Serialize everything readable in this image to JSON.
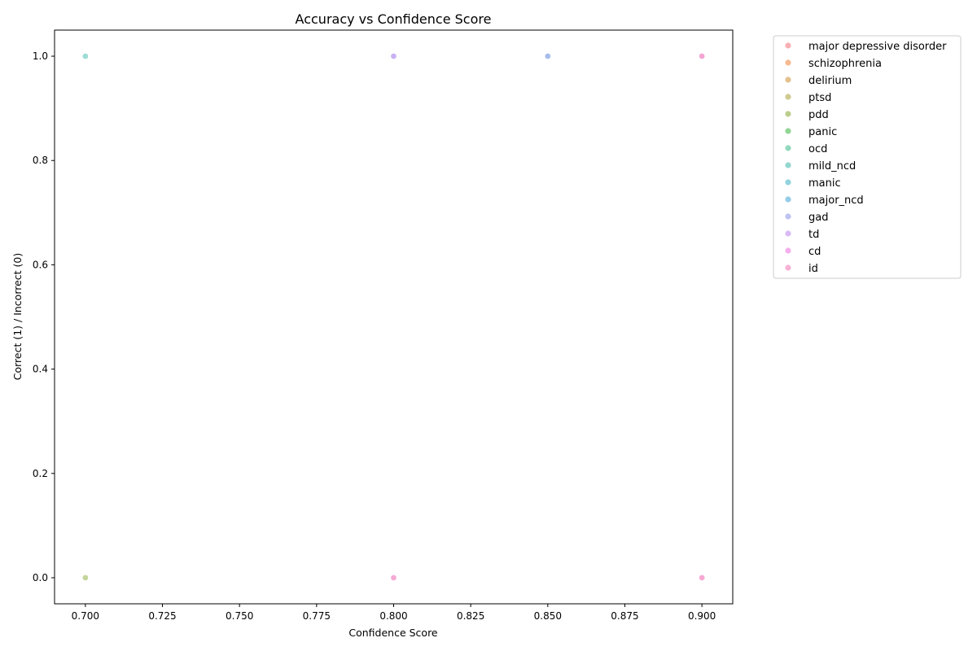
{
  "chart_data": {
    "type": "scatter",
    "title": "Accuracy vs Confidence Score",
    "xlabel": "Confidence Score",
    "ylabel": "Correct (1) / Incorrect (0)",
    "xlim": [
      0.69,
      0.91
    ],
    "ylim": [
      -0.05,
      1.05
    ],
    "x_ticks": [
      0.7,
      0.725,
      0.75,
      0.775,
      0.8,
      0.825,
      0.85,
      0.875,
      0.9
    ],
    "x_tick_labels": [
      "0.700",
      "0.725",
      "0.750",
      "0.775",
      "0.800",
      "0.825",
      "0.850",
      "0.875",
      "0.900"
    ],
    "y_ticks": [
      0,
      0.2,
      0.4,
      0.6,
      0.8,
      1.0
    ],
    "y_tick_labels": [
      "0.0",
      "0.2",
      "0.4",
      "0.6",
      "0.8",
      "1.0"
    ],
    "grid": false,
    "legend_position": "outside-top-right",
    "series": [
      {
        "name": "major depressive disorder",
        "color": "#f7a1a6",
        "points": [
          [
            0.9,
            1
          ],
          [
            0.8,
            1
          ]
        ]
      },
      {
        "name": "schizophrenia",
        "color": "#f5ad7c",
        "points": [
          [
            0.85,
            1
          ],
          [
            0.9,
            1
          ]
        ]
      },
      {
        "name": "delirium",
        "color": "#dfb679",
        "points": [
          [
            0.8,
            1
          ],
          [
            0.85,
            1
          ]
        ]
      },
      {
        "name": "ptsd",
        "color": "#c8c17c",
        "points": [
          [
            0.8,
            1
          ],
          [
            0.9,
            1
          ]
        ]
      },
      {
        "name": "pdd",
        "color": "#b0c77a",
        "points": [
          [
            0.7,
            0
          ],
          [
            0.8,
            1
          ]
        ]
      },
      {
        "name": "panic",
        "color": "#7ecf82",
        "points": [
          [
            0.85,
            1
          ],
          [
            0.9,
            1
          ]
        ]
      },
      {
        "name": "ocd",
        "color": "#7ed2b4",
        "points": [
          [
            0.8,
            1
          ],
          [
            0.85,
            1
          ]
        ]
      },
      {
        "name": "mild_ncd",
        "color": "#7ed0c8",
        "points": [
          [
            0.7,
            1
          ],
          [
            0.85,
            1
          ]
        ]
      },
      {
        "name": "manic",
        "color": "#80cbd8",
        "points": [
          [
            0.85,
            1
          ],
          [
            0.9,
            1
          ]
        ]
      },
      {
        "name": "major_ncd",
        "color": "#82c3e3",
        "points": [
          [
            0.85,
            1
          ],
          [
            0.8,
            1
          ]
        ]
      },
      {
        "name": "gad",
        "color": "#b3b8ef",
        "points": [
          [
            0.8,
            1
          ],
          [
            0.85,
            1
          ]
        ]
      },
      {
        "name": "td",
        "color": "#d4aef5",
        "points": [
          [
            0.8,
            1
          ],
          [
            0.9,
            1
          ]
        ]
      },
      {
        "name": "cd",
        "color": "#f3a1ea",
        "points": [
          [
            0.8,
            0
          ],
          [
            0.9,
            0
          ],
          [
            0.9,
            1
          ]
        ]
      },
      {
        "name": "id",
        "color": "#f5a4cc",
        "points": [
          [
            0.8,
            0
          ],
          [
            0.9,
            0
          ],
          [
            0.9,
            1
          ]
        ]
      }
    ]
  }
}
